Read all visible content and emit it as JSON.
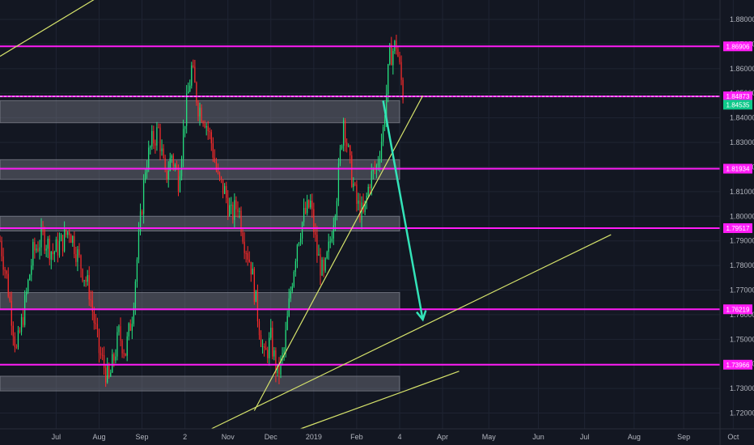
{
  "chart_data": {
    "type": "candlestick",
    "colors": {
      "background": "#131722",
      "up": "#26e07f",
      "down": "#ff2b2b",
      "level": "#ff1cf6",
      "trend": "#d6e36b",
      "zone": "#787b86",
      "arrow": "#33e3b8",
      "current_price": "#0fc98a",
      "grid": "#1f2433"
    },
    "y_axis": {
      "range": [
        1.7136,
        1.8879
      ],
      "ticks": [
        "1.88000",
        "1.87000",
        "1.86000",
        "1.85000",
        "1.84000",
        "1.83000",
        "1.82000",
        "1.81000",
        "1.80000",
        "1.79000",
        "1.78000",
        "1.77000",
        "1.76000",
        "1.75000",
        "1.74000",
        "1.73000",
        "1.72000"
      ]
    },
    "x_axis": {
      "range": [
        0,
        218
      ],
      "ticks": [
        {
          "label": "Jul",
          "x": 17
        },
        {
          "label": "Aug",
          "x": 30
        },
        {
          "label": "Sep",
          "x": 43
        },
        {
          "label": "2",
          "x": 56
        },
        {
          "label": "Nov",
          "x": 69
        },
        {
          "label": "Dec",
          "x": 82
        },
        {
          "label": "2019",
          "x": 95
        },
        {
          "label": "Feb",
          "x": 108
        },
        {
          "label": "4",
          "x": 121
        },
        {
          "label": "Apr",
          "x": 134
        },
        {
          "label": "May",
          "x": 148
        },
        {
          "label": "Jun",
          "x": 163
        },
        {
          "label": "Jul",
          "x": 177
        },
        {
          "label": "Aug",
          "x": 192
        },
        {
          "label": "Sep",
          "x": 207
        },
        {
          "label": "Oct",
          "x": 222
        }
      ]
    },
    "price_path": [
      [
        0,
        1.79
      ],
      [
        2,
        1.775
      ],
      [
        5,
        1.745
      ],
      [
        7,
        1.76
      ],
      [
        10,
        1.785
      ],
      [
        13,
        1.792
      ],
      [
        16,
        1.785
      ],
      [
        19,
        1.79
      ],
      [
        21,
        1.795
      ],
      [
        24,
        1.782
      ],
      [
        27,
        1.77
      ],
      [
        30,
        1.745
      ],
      [
        33,
        1.733
      ],
      [
        36,
        1.752
      ],
      [
        38,
        1.745
      ],
      [
        40,
        1.76
      ],
      [
        42,
        1.79
      ],
      [
        44,
        1.82
      ],
      [
        46,
        1.83
      ],
      [
        48,
        1.835
      ],
      [
        50,
        1.815
      ],
      [
        52,
        1.825
      ],
      [
        54,
        1.815
      ],
      [
        56,
        1.84
      ],
      [
        58,
        1.86
      ],
      [
        60,
        1.845
      ],
      [
        62,
        1.84
      ],
      [
        64,
        1.83
      ],
      [
        66,
        1.815
      ],
      [
        68,
        1.81
      ],
      [
        70,
        1.8
      ],
      [
        72,
        1.805
      ],
      [
        74,
        1.79
      ],
      [
        76,
        1.78
      ],
      [
        78,
        1.76
      ],
      [
        80,
        1.742
      ],
      [
        82,
        1.75
      ],
      [
        84,
        1.735
      ],
      [
        86,
        1.745
      ],
      [
        88,
        1.77
      ],
      [
        90,
        1.79
      ],
      [
        92,
        1.8
      ],
      [
        94,
        1.805
      ],
      [
        96,
        1.785
      ],
      [
        98,
        1.775
      ],
      [
        100,
        1.79
      ],
      [
        102,
        1.81
      ],
      [
        104,
        1.84
      ],
      [
        106,
        1.82
      ],
      [
        108,
        1.805
      ],
      [
        110,
        1.8
      ],
      [
        112,
        1.815
      ],
      [
        114,
        1.82
      ],
      [
        116,
        1.835
      ],
      [
        118,
        1.865
      ],
      [
        120,
        1.87
      ],
      [
        122,
        1.85
      ]
    ],
    "level_lines": [
      {
        "price": 1.86906,
        "label": "1.86906"
      },
      {
        "price": 1.84873,
        "label": "1.84873"
      },
      {
        "price": 1.81934,
        "label": "1.81934"
      },
      {
        "price": 1.79517,
        "label": "1.79517"
      },
      {
        "price": 1.76219,
        "label": "1.76219"
      },
      {
        "price": 1.73966,
        "label": "1.73966"
      }
    ],
    "current_price": {
      "price": 1.84535,
      "label": "1.84535"
    },
    "zones": [
      {
        "x0": 0,
        "x1": 121,
        "y_top": 1.847,
        "y_bottom": 1.838
      },
      {
        "x0": 0,
        "x1": 121,
        "y_top": 1.823,
        "y_bottom": 1.815
      },
      {
        "x0": 0,
        "x1": 121,
        "y_top": 1.8,
        "y_bottom": 1.794
      },
      {
        "x0": 0,
        "x1": 121,
        "y_top": 1.769,
        "y_bottom": 1.762
      },
      {
        "x0": 0,
        "x1": 121,
        "y_top": 1.735,
        "y_bottom": 1.729
      }
    ],
    "trend_lines": [
      {
        "x0": 0,
        "y0": 1.865,
        "x1": 29,
        "y1": 1.8885
      },
      {
        "x0": 77,
        "y0": 1.721,
        "x1": 128,
        "y1": 1.849
      },
      {
        "x0": 64,
        "y0": 1.7136,
        "x1": 185,
        "y1": 1.7925
      },
      {
        "x0": 91,
        "y0": 1.7136,
        "x1": 139,
        "y1": 1.737
      }
    ],
    "arrow": {
      "x0": 116,
      "y0": 1.847,
      "x1": 128,
      "y1": 1.758
    }
  }
}
